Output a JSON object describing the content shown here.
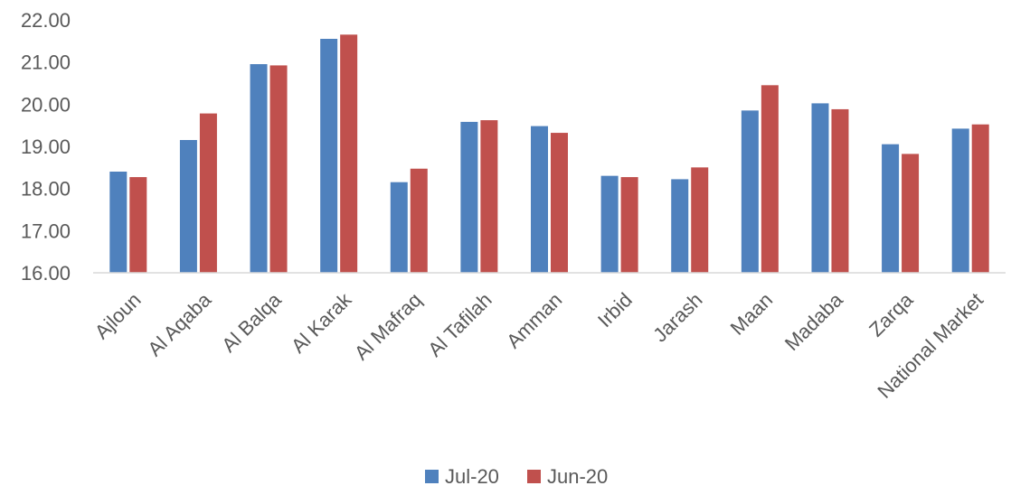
{
  "chart_data": {
    "type": "bar",
    "categories": [
      "Ajloun",
      "Al Aqaba",
      "Al Balqa",
      "Al Karak",
      "Al Mafraq",
      "Al Tafilah",
      "Amman",
      "Irbid",
      "Jarash",
      "Maan",
      "Madaba",
      "Zarqa",
      "National Market"
    ],
    "series": [
      {
        "name": "Jul-20",
        "color": "#4F81BD",
        "values": [
          18.4,
          19.15,
          20.95,
          21.55,
          18.15,
          19.58,
          19.48,
          18.3,
          18.22,
          19.85,
          20.02,
          19.05,
          19.42
        ]
      },
      {
        "name": "Jun-20",
        "color": "#C0504D",
        "values": [
          18.27,
          19.78,
          20.92,
          21.65,
          18.47,
          19.62,
          19.32,
          18.27,
          18.5,
          20.45,
          19.88,
          18.82,
          19.52
        ]
      }
    ],
    "yticks": [
      "16.00",
      "17.00",
      "18.00",
      "19.00",
      "20.00",
      "21.00",
      "22.00"
    ],
    "ylim": [
      16,
      22
    ],
    "grid": false,
    "legend_position": "bottom",
    "title": "",
    "xlabel": "",
    "ylabel": ""
  }
}
